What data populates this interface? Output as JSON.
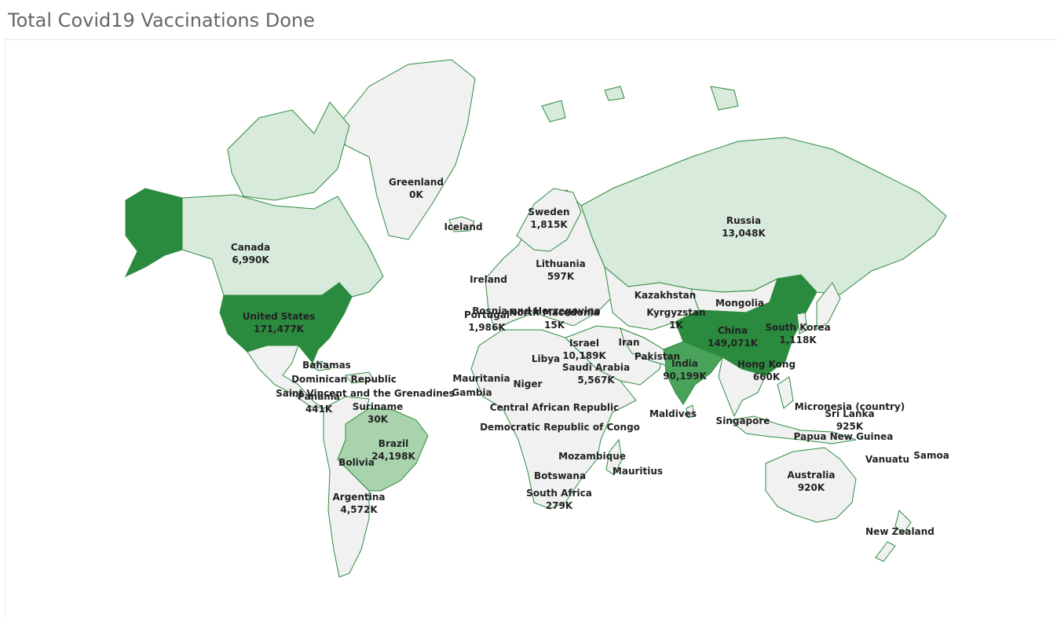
{
  "title": "Total Covid19 Vaccinations Done",
  "colors": {
    "max": "#2a8b3e",
    "high": "#4aa35a",
    "mid": "#a9d3ad",
    "low": "#d7eadb",
    "none": "#f1f1f1",
    "border": "#2e8b3e"
  },
  "countries": [
    {
      "name": "Greenland",
      "value": "0K",
      "shade": "none"
    },
    {
      "name": "Iceland",
      "value": "",
      "shade": "none"
    },
    {
      "name": "Sweden",
      "value": "1,815K",
      "shade": "none"
    },
    {
      "name": "Russia",
      "value": "13,048K",
      "shade": "low"
    },
    {
      "name": "Canada",
      "value": "6,990K",
      "shade": "low"
    },
    {
      "name": "Lithuania",
      "value": "597K",
      "shade": "none"
    },
    {
      "name": "Ireland",
      "value": "",
      "shade": "none"
    },
    {
      "name": "Kazakhstan",
      "value": "",
      "shade": "none"
    },
    {
      "name": "Mongolia",
      "value": "",
      "shade": "none"
    },
    {
      "name": "United States",
      "value": "171,477K",
      "shade": "max"
    },
    {
      "name": "Portugal",
      "value": "1,986K",
      "shade": "none"
    },
    {
      "name": "Bosnia and Herzegovina",
      "value": "",
      "shade": "none"
    },
    {
      "name": "North Macedonia",
      "value": "15K",
      "shade": "none"
    },
    {
      "name": "Kyrgyzstan",
      "value": "1K",
      "shade": "none"
    },
    {
      "name": "China",
      "value": "149,071K",
      "shade": "max"
    },
    {
      "name": "South Korea",
      "value": "1,118K",
      "shade": "none"
    },
    {
      "name": "Israel",
      "value": "10,189K",
      "shade": "none"
    },
    {
      "name": "Iran",
      "value": "",
      "shade": "none"
    },
    {
      "name": "Libya",
      "value": "",
      "shade": "none"
    },
    {
      "name": "Pakistan",
      "value": "",
      "shade": "none"
    },
    {
      "name": "Saudi Arabia",
      "value": "5,567K",
      "shade": "none"
    },
    {
      "name": "India",
      "value": "90,199K",
      "shade": "high"
    },
    {
      "name": "Hong Kong",
      "value": "660K",
      "shade": "none"
    },
    {
      "name": "Bahamas",
      "value": "",
      "shade": "none"
    },
    {
      "name": "Dominican Republic",
      "value": "",
      "shade": "none"
    },
    {
      "name": "Mauritania",
      "value": "",
      "shade": "none"
    },
    {
      "name": "Niger",
      "value": "",
      "shade": "none"
    },
    {
      "name": "Saint Vincent and the Grenadines",
      "value": "",
      "shade": "none"
    },
    {
      "name": "Gambia",
      "value": "",
      "shade": "none"
    },
    {
      "name": "Panama",
      "value": "441K",
      "shade": "none"
    },
    {
      "name": "Suriname",
      "value": "30K",
      "shade": "none"
    },
    {
      "name": "Central African Republic",
      "value": "",
      "shade": "none"
    },
    {
      "name": "Maldives",
      "value": "",
      "shade": "none"
    },
    {
      "name": "Micronesia (country)",
      "value": "",
      "shade": "none"
    },
    {
      "name": "Sri Lanka",
      "value": "925K",
      "shade": "none"
    },
    {
      "name": "Singapore",
      "value": "",
      "shade": "none"
    },
    {
      "name": "Democratic Republic of Congo",
      "value": "",
      "shade": "none"
    },
    {
      "name": "Papua New Guinea",
      "value": "",
      "shade": "none"
    },
    {
      "name": "Brazil",
      "value": "24,198K",
      "shade": "mid"
    },
    {
      "name": "Mozambique",
      "value": "",
      "shade": "none"
    },
    {
      "name": "Vanuatu",
      "value": "",
      "shade": "none"
    },
    {
      "name": "Samoa",
      "value": "",
      "shade": "none"
    },
    {
      "name": "Bolivia",
      "value": "",
      "shade": "none"
    },
    {
      "name": "Mauritius",
      "value": "",
      "shade": "none"
    },
    {
      "name": "Australia",
      "value": "920K",
      "shade": "none"
    },
    {
      "name": "Botswana",
      "value": "",
      "shade": "none"
    },
    {
      "name": "South Africa",
      "value": "279K",
      "shade": "none"
    },
    {
      "name": "Argentina",
      "value": "4,572K",
      "shade": "none"
    },
    {
      "name": "New Zealand",
      "value": "",
      "shade": "none"
    }
  ]
}
